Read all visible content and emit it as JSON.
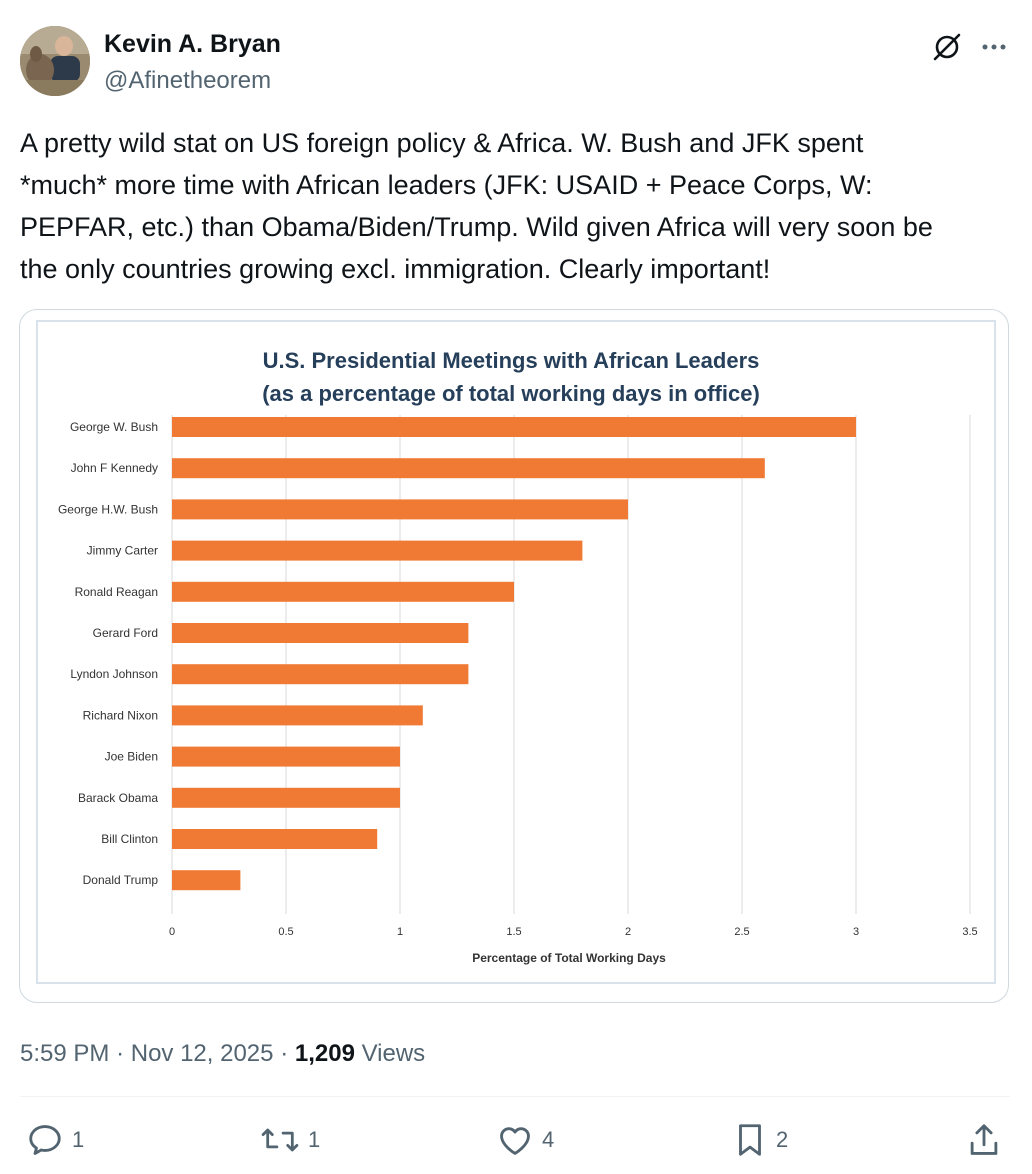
{
  "author": {
    "name": "Kevin A. Bryan",
    "handle": "@Afinetheorem"
  },
  "post": {
    "lines": [
      "A pretty wild stat on US foreign policy & Africa. W. Bush and JFK spent",
      "*much* more time with African leaders (JFK: USAID + Peace Corps, W:",
      "PEPFAR, etc.) than Obama/Biden/Trump. Wild given Africa will very soon be",
      "the only countries growing excl. immigration.  Clearly important!"
    ]
  },
  "chart_data": {
    "type": "bar",
    "orientation": "horizontal",
    "title": "U.S. Presidential Meetings with African Leaders",
    "subtitle": "(as a percentage of total working days in office)",
    "xlabel": "Percentage of Total Working Days",
    "ylabel": "",
    "xlim": [
      0,
      3.5
    ],
    "xticks": [
      "0",
      "0.5",
      "1",
      "1.5",
      "2",
      "2.5",
      "3",
      "3.5"
    ],
    "grid": true,
    "bar_color": "#f07a34",
    "categories": [
      "George W. Bush",
      "John F Kennedy",
      "George H.W. Bush",
      "Jimmy Carter",
      "Ronald Reagan",
      "Gerard Ford",
      "Lyndon Johnson",
      "Richard Nixon",
      "Joe Biden",
      "Barack Obama",
      "Bill Clinton",
      "Donald Trump"
    ],
    "values": [
      3.0,
      2.6,
      2.0,
      1.8,
      1.5,
      1.3,
      1.3,
      1.1,
      1.0,
      1.0,
      0.9,
      0.3
    ]
  },
  "meta": {
    "time": "5:59 PM",
    "sep": "·",
    "date": "Nov 12, 2025",
    "views_count": "1,209",
    "views_label": "Views"
  },
  "actions": {
    "replies": "1",
    "reposts": "1",
    "likes": "4",
    "bookmarks": "2"
  },
  "icons": {
    "grok": "grok-icon",
    "more": "more-icon",
    "reply": "reply-icon",
    "repost": "repost-icon",
    "like": "like-icon",
    "bookmark": "bookmark-icon",
    "share": "share-icon"
  },
  "colors": {
    "text": "#0f1419",
    "secondary": "#536471",
    "bar": "#f07a34"
  }
}
